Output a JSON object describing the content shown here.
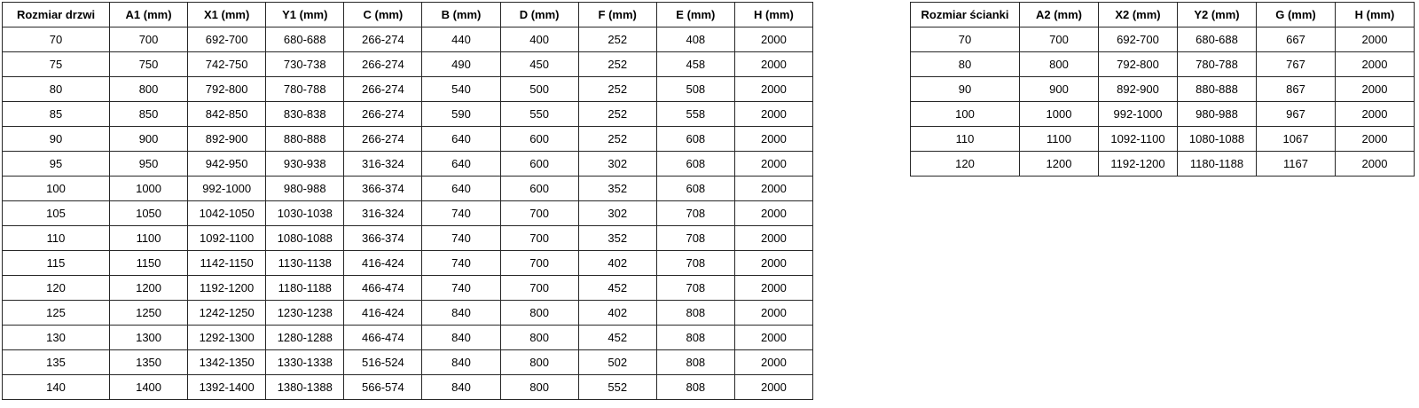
{
  "colors": {
    "background": "#ffffff",
    "table_border": "#262626",
    "text": "#000000"
  },
  "tables": [
    {
      "name": "door-dimensions-table",
      "headers": [
        "Rozmiar drzwi",
        "A1 (mm)",
        "X1 (mm)",
        "Y1 (mm)",
        "C (mm)",
        "B (mm)",
        "D (mm)",
        "F (mm)",
        "E (mm)",
        "H (mm)"
      ],
      "rows": [
        [
          "70",
          "700",
          "692-700",
          "680-688",
          "266-274",
          "440",
          "400",
          "252",
          "408",
          "2000"
        ],
        [
          "75",
          "750",
          "742-750",
          "730-738",
          "266-274",
          "490",
          "450",
          "252",
          "458",
          "2000"
        ],
        [
          "80",
          "800",
          "792-800",
          "780-788",
          "266-274",
          "540",
          "500",
          "252",
          "508",
          "2000"
        ],
        [
          "85",
          "850",
          "842-850",
          "830-838",
          "266-274",
          "590",
          "550",
          "252",
          "558",
          "2000"
        ],
        [
          "90",
          "900",
          "892-900",
          "880-888",
          "266-274",
          "640",
          "600",
          "252",
          "608",
          "2000"
        ],
        [
          "95",
          "950",
          "942-950",
          "930-938",
          "316-324",
          "640",
          "600",
          "302",
          "608",
          "2000"
        ],
        [
          "100",
          "1000",
          "992-1000",
          "980-988",
          "366-374",
          "640",
          "600",
          "352",
          "608",
          "2000"
        ],
        [
          "105",
          "1050",
          "1042-1050",
          "1030-1038",
          "316-324",
          "740",
          "700",
          "302",
          "708",
          "2000"
        ],
        [
          "110",
          "1100",
          "1092-1100",
          "1080-1088",
          "366-374",
          "740",
          "700",
          "352",
          "708",
          "2000"
        ],
        [
          "115",
          "1150",
          "1142-1150",
          "1130-1138",
          "416-424",
          "740",
          "700",
          "402",
          "708",
          "2000"
        ],
        [
          "120",
          "1200",
          "1192-1200",
          "1180-1188",
          "466-474",
          "740",
          "700",
          "452",
          "708",
          "2000"
        ],
        [
          "125",
          "1250",
          "1242-1250",
          "1230-1238",
          "416-424",
          "840",
          "800",
          "402",
          "808",
          "2000"
        ],
        [
          "130",
          "1300",
          "1292-1300",
          "1280-1288",
          "466-474",
          "840",
          "800",
          "452",
          "808",
          "2000"
        ],
        [
          "135",
          "1350",
          "1342-1350",
          "1330-1338",
          "516-524",
          "840",
          "800",
          "502",
          "808",
          "2000"
        ],
        [
          "140",
          "1400",
          "1392-1400",
          "1380-1388",
          "566-574",
          "840",
          "800",
          "552",
          "808",
          "2000"
        ]
      ]
    },
    {
      "name": "wall-dimensions-table",
      "headers": [
        "Rozmiar ścianki",
        "A2 (mm)",
        "X2 (mm)",
        "Y2 (mm)",
        "G (mm)",
        "H (mm)"
      ],
      "rows": [
        [
          "70",
          "700",
          "692-700",
          "680-688",
          "667",
          "2000"
        ],
        [
          "80",
          "800",
          "792-800",
          "780-788",
          "767",
          "2000"
        ],
        [
          "90",
          "900",
          "892-900",
          "880-888",
          "867",
          "2000"
        ],
        [
          "100",
          "1000",
          "992-1000",
          "980-988",
          "967",
          "2000"
        ],
        [
          "110",
          "1100",
          "1092-1100",
          "1080-1088",
          "1067",
          "2000"
        ],
        [
          "120",
          "1200",
          "1192-1200",
          "1180-1188",
          "1167",
          "2000"
        ]
      ]
    }
  ]
}
